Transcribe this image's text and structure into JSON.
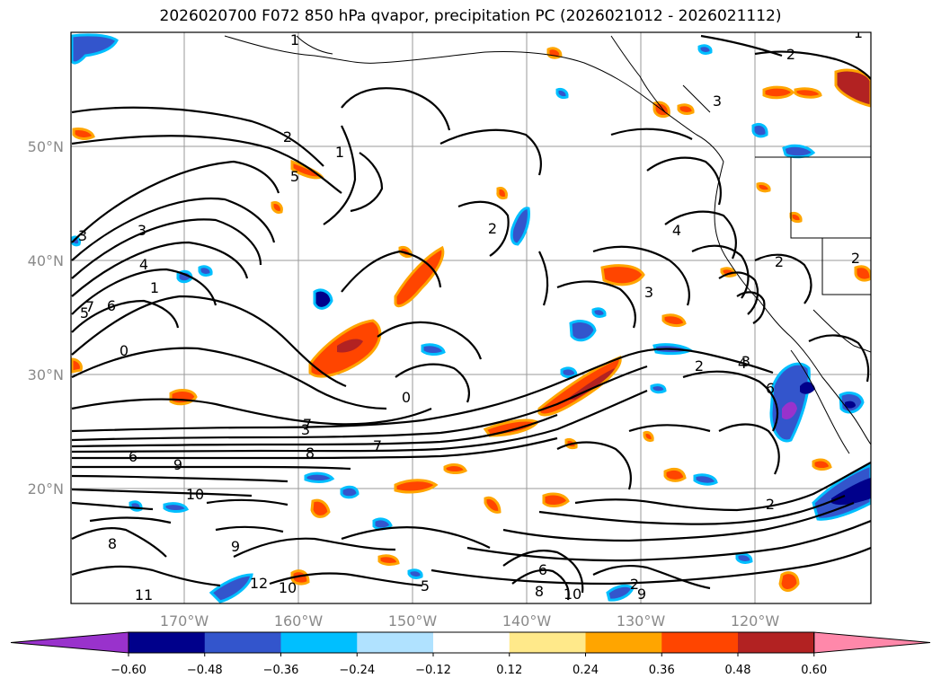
{
  "title": "2026020700 F072 850 hPa qvapor, precipitation PC (2026021012 - 2026021112)",
  "map": {
    "lat_labels": [
      "50°N",
      "40°N",
      "30°N",
      "20°N"
    ],
    "lon_labels": [
      "170°W",
      "160°W",
      "150°W",
      "140°W",
      "130°W",
      "120°W"
    ],
    "contour_labels": [
      "1",
      "2",
      "2",
      "1",
      "5",
      "3",
      "7",
      "7",
      "4",
      "1",
      "6",
      "5",
      "3",
      "0",
      "0",
      "3",
      "8",
      "7",
      "6",
      "9",
      "10",
      "8",
      "9",
      "11",
      "12",
      "10",
      "5",
      "6",
      "8",
      "10",
      "9",
      "2",
      "2",
      "3",
      "3",
      "2",
      "2",
      "4",
      "6",
      "3",
      "2",
      "4",
      "1",
      "2"
    ]
  },
  "colorbar": {
    "colors": [
      "#9932cc",
      "#00008b",
      "#3355cc",
      "#00bfff",
      "#b0e2ff",
      "#ffffff",
      "#ffe98a",
      "#ffa500",
      "#ff4500",
      "#b22222",
      "#ff88aa"
    ],
    "ticks": [
      "−0.60",
      "−0.48",
      "−0.36",
      "−0.24",
      "−0.12",
      "0.12",
      "0.24",
      "0.36",
      "0.48",
      "0.60"
    ]
  }
}
